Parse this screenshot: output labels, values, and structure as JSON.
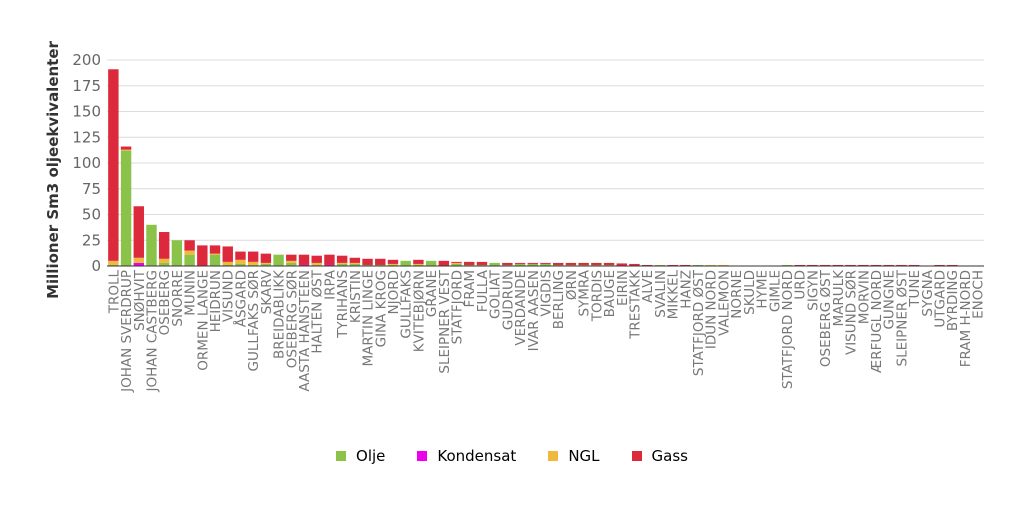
{
  "chart_data": {
    "type": "bar",
    "stacked": true,
    "ylabel": "Millioner Sm3 oljeekvivalenter",
    "ylim": [
      0,
      200
    ],
    "yticks": [
      0,
      25,
      50,
      75,
      100,
      125,
      150,
      175,
      200
    ],
    "grid": true,
    "legend_position": "bottom",
    "categories": [
      "TROLL",
      "JOHAN SVERDRUP",
      "SNØHVIT",
      "JOHAN CASTBERG",
      "OSEBERG",
      "SNORRE",
      "MUNIN",
      "ORMEN LANGE",
      "HEIDRUN",
      "VISUND",
      "ÅSGARD",
      "GULLFAKS SØR",
      "SKARV",
      "BREIDABLIKK",
      "OSEBERG SØR",
      "AASTA HANSTEEN",
      "HALTEN ØST",
      "IRPA",
      "TYRIHANS",
      "KRISTIN",
      "MARTIN LINGE",
      "GINA KROG",
      "NJORD",
      "GULLFAKS",
      "KVITEBJØRN",
      "GRANE",
      "SLEIPNER VEST",
      "STATFJORD",
      "FRAM",
      "FULLA",
      "GOLIAT",
      "GUDRUN",
      "VERDANDE",
      "IVAR AASEN",
      "VIGDIS",
      "BERLING",
      "ØRN",
      "SYMRA",
      "TORDIS",
      "BAUGE",
      "EIRIN",
      "TRESTAKK",
      "ALVE",
      "SVALIN",
      "MIKKEL",
      "HANZ",
      "STATFJORD ØST",
      "IDUN NORD",
      "VALEMON",
      "NORNE",
      "SKULD",
      "HYME",
      "GIMLE",
      "STATFJORD NORD",
      "URD",
      "SIGYN",
      "OSEBERG ØST",
      "MARULK",
      "VISUND SØR",
      "MORVIN",
      "ÆRFUGL NORD",
      "GUNGNE",
      "SLEIPNER ØST",
      "TUNE",
      "SYGNA",
      "UTGARD",
      "BYRDING",
      "FRAM H-NORD",
      "ENOCH"
    ],
    "series": [
      {
        "name": "Olje",
        "color": "#8bc34a",
        "values": [
          1,
          112,
          0,
          40,
          3,
          25,
          11,
          0,
          11,
          1,
          2,
          1,
          2,
          11,
          3,
          0,
          1,
          0,
          2,
          2,
          1,
          1,
          1,
          5,
          1,
          5,
          0,
          2,
          1,
          1,
          3,
          1,
          2,
          2,
          2,
          1,
          1,
          1,
          1,
          1,
          0.5,
          0.5,
          0,
          1,
          0,
          0,
          1,
          0,
          0,
          0,
          0,
          0,
          0,
          1,
          0,
          0,
          0,
          0,
          0,
          0,
          0,
          0,
          0,
          0,
          0,
          0,
          0,
          0,
          0
        ]
      },
      {
        "name": "Kondensat",
        "color": "#ee00ee",
        "values": [
          0,
          0,
          3,
          0,
          0,
          0,
          0,
          0,
          0,
          0,
          0,
          0,
          0,
          0,
          0,
          1,
          0,
          1,
          0,
          0,
          0,
          0,
          0,
          0,
          0,
          0,
          0,
          0,
          0,
          0,
          0,
          0,
          0,
          0,
          0,
          0,
          0,
          0,
          0,
          0,
          0,
          0,
          0,
          0,
          0,
          0,
          0,
          0,
          0,
          0,
          0,
          0,
          0,
          0,
          0,
          0,
          0,
          0,
          0,
          0,
          0,
          0,
          0,
          0,
          0,
          0,
          0,
          0,
          0
        ]
      },
      {
        "name": "NGL",
        "color": "#f0b83c",
        "values": [
          4,
          1,
          5,
          0,
          4,
          0,
          4,
          0,
          1,
          3,
          4,
          3,
          1,
          0,
          2,
          0,
          2,
          0,
          1,
          1,
          0,
          0,
          1,
          0,
          1,
          0,
          0,
          1,
          0,
          0,
          0,
          0,
          0,
          0,
          0,
          0,
          0,
          0,
          0,
          0,
          0,
          0,
          0,
          0,
          0,
          0,
          0,
          1,
          1,
          0,
          0,
          0,
          0,
          0,
          0,
          0,
          0,
          0,
          0,
          0,
          0,
          0,
          0,
          0,
          0,
          0,
          0,
          0,
          0
        ]
      },
      {
        "name": "Gass",
        "color": "#dc2a3c",
        "values": [
          186,
          3,
          50,
          0,
          26,
          0,
          10,
          20,
          8,
          15,
          8,
          10,
          9,
          0,
          6,
          10,
          7,
          10,
          7,
          5,
          6,
          6,
          4,
          0,
          4,
          0,
          5,
          1,
          3,
          3,
          0,
          2,
          1,
          1,
          1,
          2,
          2,
          2,
          2,
          2,
          2,
          1.5,
          1,
          0,
          1,
          1,
          0,
          0,
          0,
          0,
          0,
          0,
          0,
          0,
          1,
          1,
          1,
          1,
          1,
          1,
          1,
          1,
          1,
          1,
          0,
          1,
          1,
          0,
          0
        ]
      }
    ]
  }
}
